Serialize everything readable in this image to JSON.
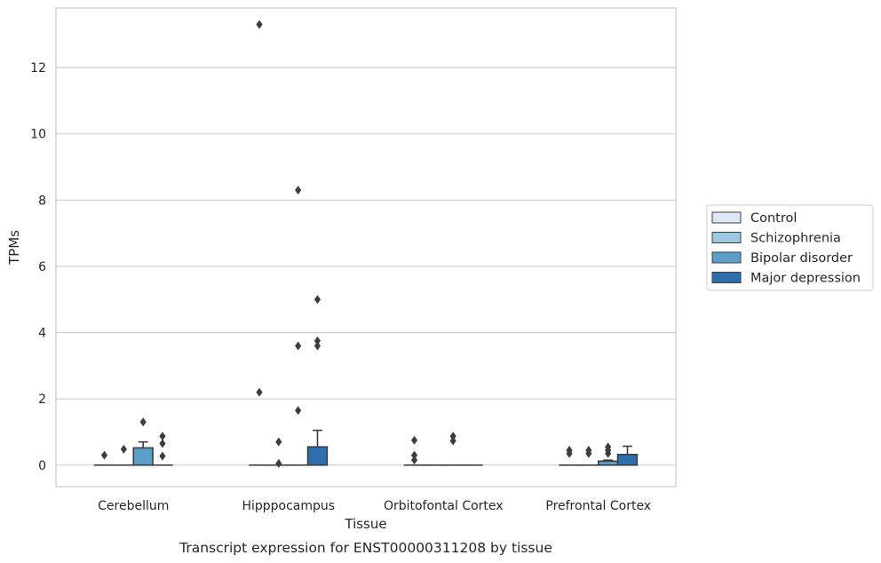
{
  "chart_data": {
    "type": "box",
    "title": "",
    "caption": "Transcript expression for ENST00000311208 by tissue",
    "xlabel": "Tissue",
    "ylabel": "TPMs",
    "ylim": [
      -0.65,
      13.8
    ],
    "yticks": [
      0,
      2,
      4,
      6,
      8,
      10,
      12
    ],
    "grid": "horizontal",
    "legend_position": "right-center",
    "categories": [
      "Cerebellum",
      "Hipppocampus",
      "Orbitofontal Cortex",
      "Prefrontal Cortex"
    ],
    "series": [
      {
        "name": "Control",
        "color": "#dbe9f6",
        "boxes": [
          {
            "q1": 0,
            "median": 0,
            "q3": 0,
            "whisker_low": 0,
            "whisker_high": 0,
            "outliers": [
              0.3
            ]
          },
          {
            "q1": 0,
            "median": 0,
            "q3": 0,
            "whisker_low": 0,
            "whisker_high": 0,
            "outliers": [
              13.3,
              2.2
            ]
          },
          {
            "q1": 0,
            "median": 0,
            "q3": 0,
            "whisker_low": 0,
            "whisker_high": 0,
            "outliers": [
              0.75,
              0.3,
              0.15
            ]
          },
          {
            "q1": 0,
            "median": 0,
            "q3": 0,
            "whisker_low": 0,
            "whisker_high": 0,
            "outliers": [
              0.45,
              0.35
            ]
          }
        ]
      },
      {
        "name": "Schizophrenia",
        "color": "#9ac8e0",
        "boxes": [
          {
            "q1": 0,
            "median": 0,
            "q3": 0,
            "whisker_low": 0,
            "whisker_high": 0,
            "outliers": [
              0.48
            ]
          },
          {
            "q1": 0,
            "median": 0,
            "q3": 0,
            "whisker_low": 0,
            "whisker_high": 0,
            "outliers": [
              0.7,
              0.05
            ]
          },
          {
            "q1": 0,
            "median": 0,
            "q3": 0,
            "whisker_low": 0,
            "whisker_high": 0,
            "outliers": []
          },
          {
            "q1": 0,
            "median": 0,
            "q3": 0,
            "whisker_low": 0,
            "whisker_high": 0,
            "outliers": [
              0.45,
              0.35
            ]
          }
        ]
      },
      {
        "name": "Bipolar disorder",
        "color": "#5a9ec9",
        "boxes": [
          {
            "q1": 0,
            "median": 0,
            "q3": 0.52,
            "whisker_low": 0,
            "whisker_high": 0.7,
            "outliers": [
              1.3
            ]
          },
          {
            "q1": 0,
            "median": 0,
            "q3": 0,
            "whisker_low": 0,
            "whisker_high": 0,
            "outliers": [
              8.3,
              3.6,
              1.65
            ]
          },
          {
            "q1": 0,
            "median": 0,
            "q3": 0,
            "whisker_low": 0,
            "whisker_high": 0,
            "outliers": [
              0.87,
              0.73
            ]
          },
          {
            "q1": 0,
            "median": 0,
            "q3": 0.12,
            "whisker_low": 0,
            "whisker_high": 0.15,
            "outliers": [
              0.55,
              0.45,
              0.35
            ]
          }
        ]
      },
      {
        "name": "Major depression",
        "color": "#2d6fad",
        "boxes": [
          {
            "q1": 0,
            "median": 0,
            "q3": 0,
            "whisker_low": 0,
            "whisker_high": 0,
            "outliers": [
              0.87,
              0.65,
              0.27
            ]
          },
          {
            "q1": 0,
            "median": 0,
            "q3": 0.55,
            "whisker_low": 0,
            "whisker_high": 1.05,
            "outliers": [
              5.0,
              3.75,
              3.6
            ]
          },
          {
            "q1": 0,
            "median": 0,
            "q3": 0,
            "whisker_low": 0,
            "whisker_high": 0,
            "outliers": []
          },
          {
            "q1": 0,
            "median": 0,
            "q3": 0.32,
            "whisker_low": 0,
            "whisker_high": 0.57,
            "outliers": []
          }
        ]
      }
    ]
  }
}
